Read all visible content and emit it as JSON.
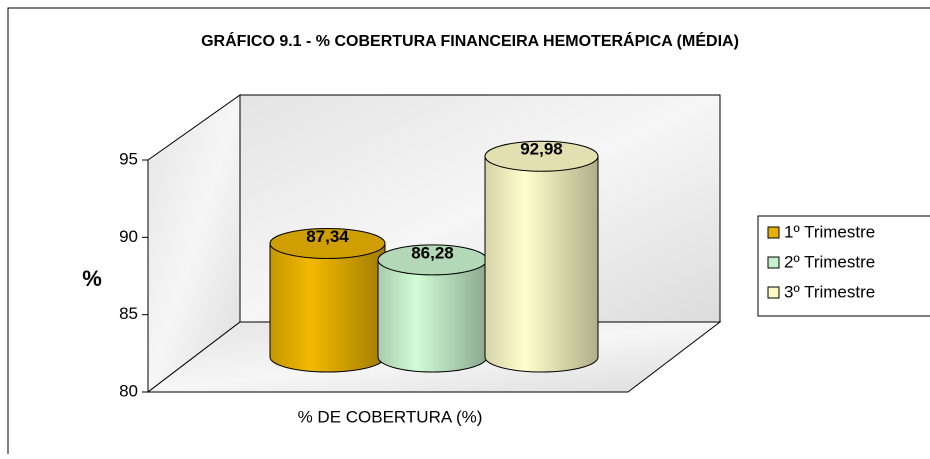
{
  "chart_data": {
    "type": "bar3d",
    "title": "GRÁFICO 9.1 - % COBERTURA FINANCEIRA HEMOTERÁPICA (MÉDIA)",
    "ylabel": "%",
    "categories": [
      "% DE COBERTURA (%)"
    ],
    "series": [
      {
        "name": "1º Trimestre",
        "color": "#e6b000",
        "values": [
          87.34
        ],
        "value_labels": [
          "87,34"
        ]
      },
      {
        "name": "2º Trimestre",
        "color": "#c6f0cc",
        "values": [
          86.28
        ],
        "value_labels": [
          "86,28"
        ]
      },
      {
        "name": "3º Trimestre",
        "color": "#fbf8c4",
        "values": [
          92.98
        ],
        "value_labels": [
          "92,98"
        ]
      }
    ],
    "ylim": [
      80,
      95
    ],
    "yticks": [
      80,
      85,
      90,
      95
    ],
    "legend": "right"
  }
}
